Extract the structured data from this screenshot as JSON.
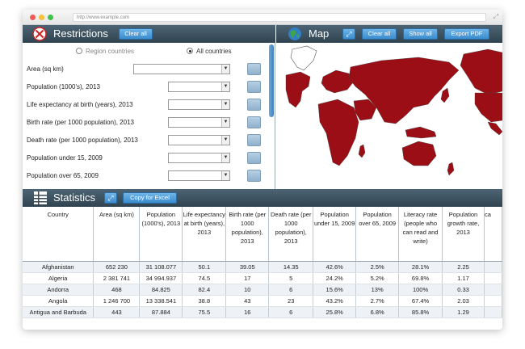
{
  "browser": {
    "url": "http://www.example.com"
  },
  "restrictions": {
    "title": "Restrictions",
    "clear_label": "Clear all",
    "radio_region": "Region countries",
    "radio_all": "All countries",
    "fields": [
      "Area (sq km)",
      "Population (1000's), 2013",
      "Life expectancy at birth (years), 2013",
      "Birth rate (per 1000 population), 2013",
      "Death rate (per 1000 population), 2013",
      "Population under 15, 2009",
      "Population over 65, 2009"
    ]
  },
  "map": {
    "title": "Map",
    "clear_label": "Clear all",
    "show_label": "Show all",
    "export_label": "Export PDF",
    "land_color": "#9b0e16"
  },
  "statistics": {
    "title": "Statistics",
    "copy_label": "Copy for Excel",
    "columns": [
      "Country",
      "Area (sq km)",
      "Population (1000's), 2013",
      "Life expectancy at birth (years), 2013",
      "Birth rate (per 1000 population), 2013",
      "Death rate (per 1000 population), 2013",
      "Population under 15, 2009",
      "Population over 65, 2009",
      "Literacy rate (people who can read and write)",
      "Population growth rate, 2013",
      "ca"
    ],
    "rows": [
      [
        "Afghanistan",
        "652 230",
        "31 108.077",
        "50.1",
        "39.05",
        "14.35",
        "42.6%",
        "2.5%",
        "28.1%",
        "2.25",
        ""
      ],
      [
        "Algeria",
        "2 381 741",
        "34 994.937",
        "74.5",
        "17",
        "5",
        "24.2%",
        "5.2%",
        "69.8%",
        "1.17",
        ""
      ],
      [
        "Andorra",
        "468",
        "84.825",
        "82.4",
        "10",
        "6",
        "15.6%",
        "13%",
        "100%",
        "0.33",
        ""
      ],
      [
        "Angola",
        "1 246 700",
        "13 338.541",
        "38.8",
        "43",
        "23",
        "43.2%",
        "2.7%",
        "67.4%",
        "2.03",
        ""
      ],
      [
        "Antigua and Barbuda",
        "443",
        "87.884",
        "75.5",
        "16",
        "6",
        "25.8%",
        "6.8%",
        "85.8%",
        "1.29",
        ""
      ]
    ]
  }
}
